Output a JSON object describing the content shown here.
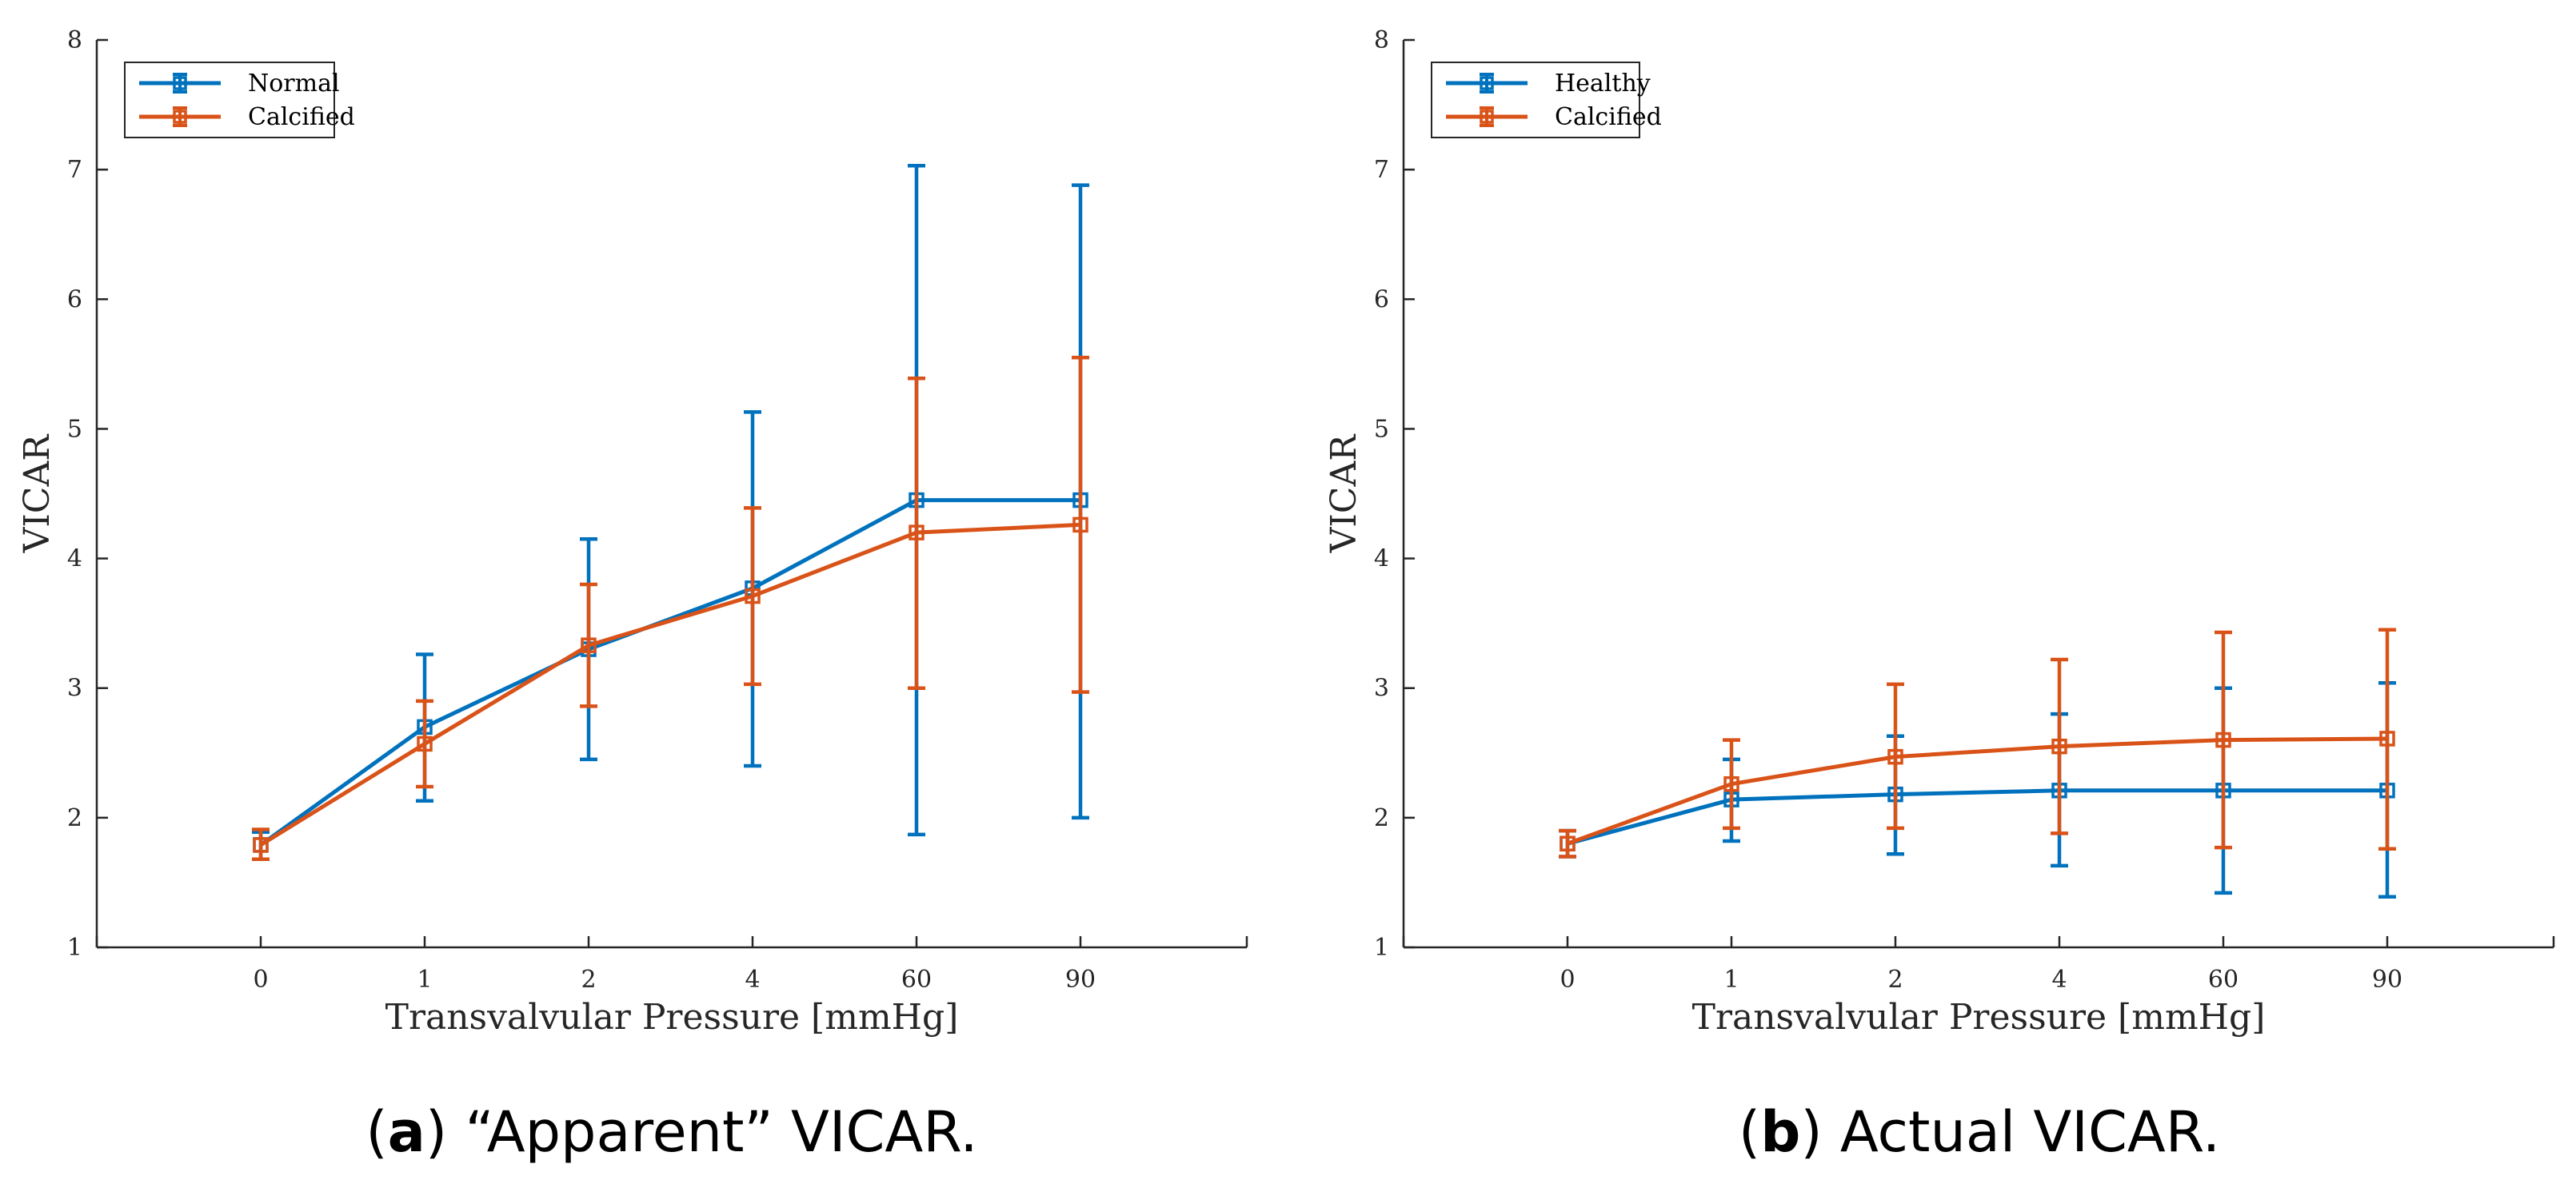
{
  "colors": {
    "series1": "#0072BD",
    "series2": "#D95319",
    "axis": "#262626"
  },
  "chart_data": [
    {
      "id": "a",
      "type": "line",
      "error_bars": true,
      "marker": "square",
      "xlabel": "Transvalvular Pressure [mmHg]",
      "ylabel": "VICAR",
      "ylim": [
        1,
        8
      ],
      "yticks": [
        "1",
        "2",
        "3",
        "4",
        "5",
        "6",
        "7",
        "8"
      ],
      "categories": [
        "0",
        "1",
        "2",
        "4",
        "60",
        "90"
      ],
      "grid": false,
      "legend_position": "top-left",
      "caption": {
        "label": "a",
        "text": "“Apparent” VICAR."
      },
      "series": [
        {
          "name": "Normal",
          "color": "#0072BD",
          "values": [
            1.79,
            2.7,
            3.3,
            3.77,
            4.45,
            4.45
          ],
          "err_low": [
            1.68,
            2.13,
            2.45,
            2.4,
            1.87,
            2.0
          ],
          "err_high": [
            1.89,
            3.26,
            4.15,
            5.13,
            7.03,
            6.88
          ]
        },
        {
          "name": "Calcified",
          "color": "#D95319",
          "values": [
            1.79,
            2.57,
            3.33,
            3.71,
            4.2,
            4.26
          ],
          "err_low": [
            1.68,
            2.24,
            2.86,
            3.03,
            3.0,
            2.97
          ],
          "err_high": [
            1.91,
            2.9,
            3.8,
            4.39,
            5.39,
            5.55
          ]
        }
      ]
    },
    {
      "id": "b",
      "type": "line",
      "error_bars": true,
      "marker": "square",
      "xlabel": "Transvalvular Pressure [mmHg]",
      "ylabel": "VICAR",
      "ylim": [
        1,
        8
      ],
      "yticks": [
        "1",
        "2",
        "3",
        "4",
        "5",
        "6",
        "7",
        "8"
      ],
      "categories": [
        "0",
        "1",
        "2",
        "4",
        "60",
        "90"
      ],
      "grid": false,
      "legend_position": "top-left",
      "caption": {
        "label": "b",
        "text": "Actual VICAR."
      },
      "series": [
        {
          "name": "Healthy",
          "color": "#0072BD",
          "values": [
            1.8,
            2.14,
            2.18,
            2.21,
            2.21,
            2.21
          ],
          "err_low": [
            1.7,
            1.82,
            1.72,
            1.63,
            1.42,
            1.39
          ],
          "err_high": [
            1.9,
            2.45,
            2.63,
            2.8,
            3.0,
            3.04
          ]
        },
        {
          "name": "Calcified",
          "color": "#D95319",
          "values": [
            1.8,
            2.26,
            2.47,
            2.55,
            2.6,
            2.61
          ],
          "err_low": [
            1.7,
            1.92,
            1.92,
            1.88,
            1.77,
            1.76
          ],
          "err_high": [
            1.9,
            2.6,
            3.03,
            3.22,
            3.43,
            3.45
          ]
        }
      ]
    }
  ]
}
